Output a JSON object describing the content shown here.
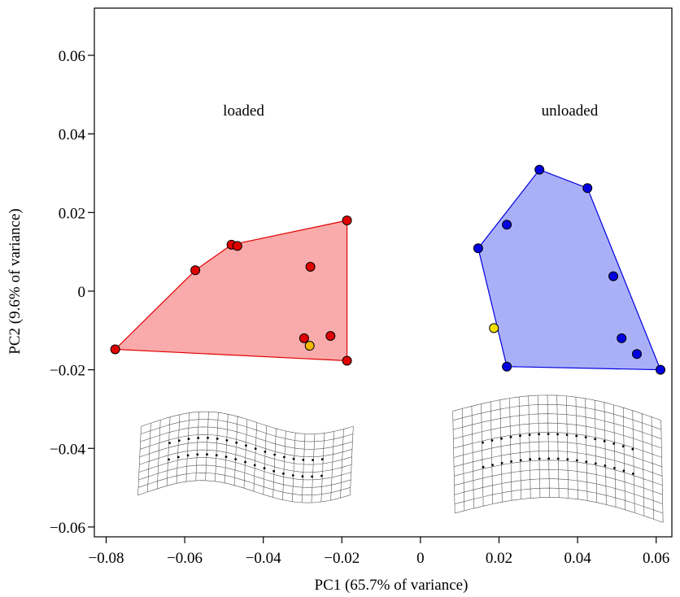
{
  "chart_data": {
    "type": "scatter",
    "xlabel": "PC1 (65.7% of variance)",
    "ylabel": "PC2 (9.6% of variance)",
    "xlim": [
      -0.083,
      0.064
    ],
    "ylim": [
      -0.0625,
      0.072
    ],
    "xticks": [
      {
        "value": -0.08,
        "label": "−0.08"
      },
      {
        "value": -0.06,
        "label": "−0.06"
      },
      {
        "value": -0.04,
        "label": "−0.04"
      },
      {
        "value": -0.02,
        "label": "−0.02"
      },
      {
        "value": 0,
        "label": "0"
      },
      {
        "value": 0.02,
        "label": "0.02"
      },
      {
        "value": 0.04,
        "label": "0.04"
      },
      {
        "value": 0.06,
        "label": "0.06"
      }
    ],
    "yticks": [
      {
        "value": -0.06,
        "label": "−0.06"
      },
      {
        "value": -0.04,
        "label": "−0.04"
      },
      {
        "value": -0.02,
        "label": "−0.02"
      },
      {
        "value": 0,
        "label": "0"
      },
      {
        "value": 0.02,
        "label": "0.02"
      },
      {
        "value": 0.04,
        "label": "0.04"
      },
      {
        "value": 0.06,
        "label": "0.06"
      }
    ],
    "grid": false,
    "groups": [
      {
        "name": "loaded",
        "point_color": "#e00000",
        "hull_fill": "#f9aaaa",
        "hull_stroke": "#e00000",
        "points": [
          {
            "x": -0.0777,
            "y": -0.0148
          },
          {
            "x": -0.0573,
            "y": 0.0053
          },
          {
            "x": -0.0481,
            "y": 0.0118
          },
          {
            "x": -0.0466,
            "y": 0.0115
          },
          {
            "x": -0.0187,
            "y": 0.018
          },
          {
            "x": -0.028,
            "y": 0.0062
          },
          {
            "x": -0.0296,
            "y": -0.012
          },
          {
            "x": -0.0229,
            "y": -0.0114
          },
          {
            "x": -0.0187,
            "y": -0.0177
          }
        ],
        "hull": [
          {
            "x": -0.0777,
            "y": -0.0148
          },
          {
            "x": -0.0573,
            "y": 0.0053
          },
          {
            "x": -0.0481,
            "y": 0.0118
          },
          {
            "x": -0.0187,
            "y": 0.018
          },
          {
            "x": -0.0187,
            "y": -0.0177
          }
        ],
        "highlight": {
          "x": -0.0282,
          "y": -0.0139,
          "color": "#f5b800"
        }
      },
      {
        "name": "unloaded",
        "point_color": "#0000e0",
        "hull_fill": "#aab0f8",
        "hull_stroke": "#0000e0",
        "points": [
          {
            "x": 0.0147,
            "y": 0.0109
          },
          {
            "x": 0.0303,
            "y": 0.0309
          },
          {
            "x": 0.0425,
            "y": 0.0262
          },
          {
            "x": 0.022,
            "y": 0.0169
          },
          {
            "x": 0.0491,
            "y": 0.0038
          },
          {
            "x": 0.0512,
            "y": -0.012
          },
          {
            "x": 0.0551,
            "y": -0.016
          },
          {
            "x": 0.0611,
            "y": -0.02
          },
          {
            "x": 0.022,
            "y": -0.0192
          }
        ],
        "hull": [
          {
            "x": 0.0147,
            "y": 0.0109
          },
          {
            "x": 0.0303,
            "y": 0.0309
          },
          {
            "x": 0.0425,
            "y": 0.0262
          },
          {
            "x": 0.0611,
            "y": -0.02
          },
          {
            "x": 0.022,
            "y": -0.0192
          }
        ],
        "highlight": {
          "x": 0.0187,
          "y": -0.0094,
          "color": "#f5e000"
        }
      }
    ],
    "group_labels": [
      {
        "text": "loaded",
        "x": -0.045,
        "y": 0.043
      },
      {
        "text": "unloaded",
        "x": 0.038,
        "y": 0.043
      }
    ],
    "deformation_grids": [
      {
        "name": "loaded-deformation-grid",
        "x_range": [
          -0.0715,
          -0.0175
        ],
        "y_range": [
          -0.051,
          -0.0335
        ],
        "bend": "s-curve",
        "cols": 22,
        "rows": 9
      },
      {
        "name": "unloaded-deformation-grid",
        "x_range": [
          0.0085,
          0.0615
        ],
        "y_range": [
          -0.0565,
          -0.0305
        ],
        "bend": "arch",
        "cols": 22,
        "rows": 11
      }
    ]
  }
}
